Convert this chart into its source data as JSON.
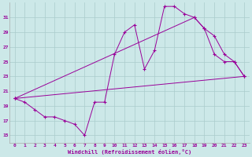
{
  "background_color": "#cce8e8",
  "grid_color": "#aacccc",
  "line_color": "#990099",
  "xlim": [
    -0.5,
    23.5
  ],
  "ylim": [
    14.0,
    33.0
  ],
  "xticks": [
    0,
    1,
    2,
    3,
    4,
    5,
    6,
    7,
    8,
    9,
    10,
    11,
    12,
    13,
    14,
    15,
    16,
    17,
    18,
    19,
    20,
    21,
    22,
    23
  ],
  "yticks": [
    15,
    17,
    19,
    21,
    23,
    25,
    27,
    29,
    31
  ],
  "xlabel": "Windchill (Refroidissement éolien,°C)",
  "line1_x": [
    0,
    1,
    2,
    3,
    4,
    5,
    6,
    7,
    8,
    9,
    10,
    11,
    12,
    13,
    14,
    15,
    16,
    17,
    18,
    19,
    20,
    21,
    22,
    23
  ],
  "line1_y": [
    20,
    19.5,
    18.5,
    17.5,
    17.5,
    17.0,
    16.5,
    15.0,
    19.5,
    19.5,
    26.0,
    29.0,
    30.0,
    24.0,
    26.5,
    32.5,
    32.5,
    31.5,
    31.0,
    29.5,
    26.0,
    25.0,
    25.0,
    23.0
  ],
  "line2_x": [
    0,
    18,
    19,
    20,
    21,
    22,
    23
  ],
  "line2_y": [
    20,
    31.0,
    29.5,
    28.5,
    26.0,
    25.0,
    23.0
  ],
  "line3_x": [
    0,
    23
  ],
  "line3_y": [
    20,
    23.0
  ]
}
